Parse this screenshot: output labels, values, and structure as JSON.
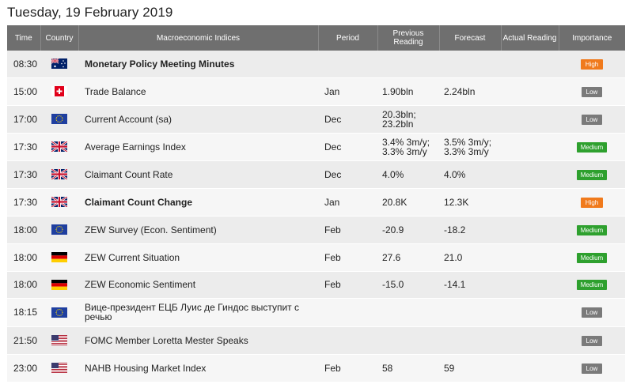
{
  "page_title": "Tuesday, 19 February 2019",
  "columns": {
    "time": "Time",
    "country": "Country",
    "indices": "Macroeconomic Indices",
    "period": "Period",
    "previous": "Previous Reading",
    "forecast": "Forecast",
    "actual": "Actual Reading",
    "importance": "Importance"
  },
  "colors": {
    "header_bg": "#6f6f6f",
    "high": "#f07a1c",
    "medium": "#2ea02e",
    "low": "#7a7a7a"
  },
  "rows": [
    {
      "time": "08:30",
      "flag": "australia-flag-icon",
      "event": "Monetary Policy Meeting Minutes",
      "bold": true,
      "period": "",
      "previous": "",
      "forecast": "",
      "actual": "",
      "importance": "High"
    },
    {
      "time": "15:00",
      "flag": "switzerland-flag-icon",
      "event": "Trade Balance",
      "bold": false,
      "period": "Jan",
      "previous": "1.90bln",
      "forecast": "2.24bln",
      "actual": "",
      "importance": "Low"
    },
    {
      "time": "17:00",
      "flag": "eu-flag-icon",
      "event": "Current Account (sa)",
      "bold": false,
      "period": "Dec",
      "previous": "20.3bln; 23.2bln",
      "forecast": "",
      "actual": "",
      "importance": "Low"
    },
    {
      "time": "17:30",
      "flag": "uk-flag-icon",
      "event": "Average Earnings Index",
      "bold": false,
      "period": "Dec",
      "previous": "3.4% 3m/y; 3.3% 3m/y",
      "forecast": "3.5% 3m/y; 3.3% 3m/y",
      "actual": "",
      "importance": "Medium"
    },
    {
      "time": "17:30",
      "flag": "uk-flag-icon",
      "event": "Claimant Count Rate",
      "bold": false,
      "period": "Dec",
      "previous": "4.0%",
      "forecast": "4.0%",
      "actual": "",
      "importance": "Medium"
    },
    {
      "time": "17:30",
      "flag": "uk-flag-icon",
      "event": "Claimant Count Change",
      "bold": true,
      "period": "Jan",
      "previous": "20.8K",
      "forecast": "12.3K",
      "actual": "",
      "importance": "High"
    },
    {
      "time": "18:00",
      "flag": "eu-flag-icon",
      "event": "ZEW Survey (Econ. Sentiment)",
      "bold": false,
      "period": "Feb",
      "previous": "-20.9",
      "forecast": "-18.2",
      "actual": "",
      "importance": "Medium"
    },
    {
      "time": "18:00",
      "flag": "germany-flag-icon",
      "event": "ZEW Current Situation",
      "bold": false,
      "period": "Feb",
      "previous": "27.6",
      "forecast": "21.0",
      "actual": "",
      "importance": "Medium"
    },
    {
      "time": "18:00",
      "flag": "germany-flag-icon",
      "event": "ZEW Economic Sentiment",
      "bold": false,
      "period": "Feb",
      "previous": "-15.0",
      "forecast": "-14.1",
      "actual": "",
      "importance": "Medium"
    },
    {
      "time": "18:15",
      "flag": "eu-flag-icon",
      "event": "Вице-президент ЕЦБ Луис де Гиндос выступит с речью",
      "bold": false,
      "period": "",
      "previous": "",
      "forecast": "",
      "actual": "",
      "importance": "Low"
    },
    {
      "time": "21:50",
      "flag": "usa-flag-icon",
      "event": "FOMC Member Loretta Mester Speaks",
      "bold": false,
      "period": "",
      "previous": "",
      "forecast": "",
      "actual": "",
      "importance": "Low"
    },
    {
      "time": "23:00",
      "flag": "usa-flag-icon",
      "event": "NAHB Housing Market Index",
      "bold": false,
      "period": "Feb",
      "previous": "58",
      "forecast": "59",
      "actual": "",
      "importance": "Low"
    }
  ]
}
